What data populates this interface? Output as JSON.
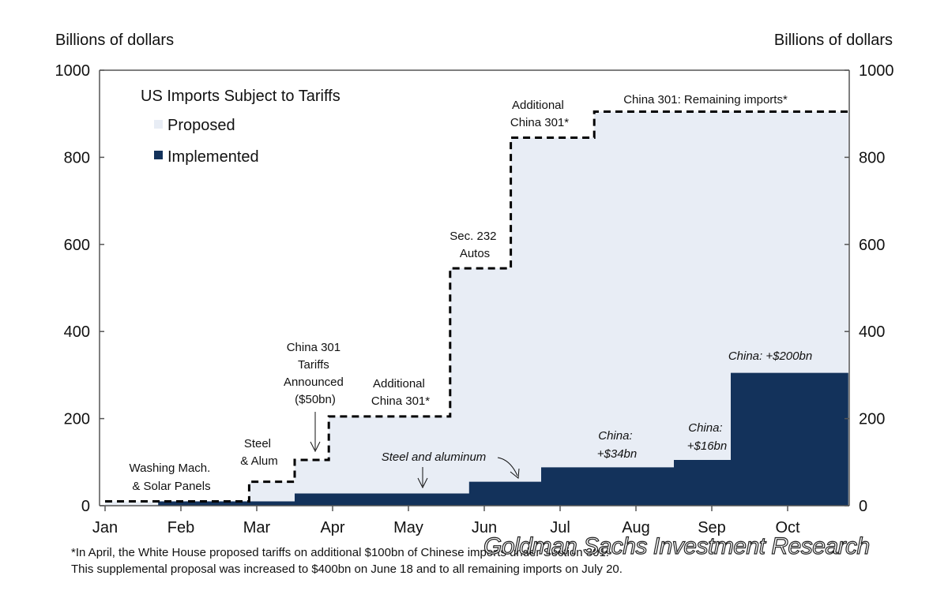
{
  "chart_data": {
    "type": "area",
    "title": "US Imports Subject to Tariffs",
    "ylabel_left": "Billions of dollars",
    "ylabel_right": "Billions of dollars",
    "ylim": [
      0,
      1000
    ],
    "yticks": [
      0,
      200,
      400,
      600,
      800,
      1000
    ],
    "x_months": [
      "Jan",
      "Feb",
      "Mar",
      "Apr",
      "May",
      "Jun",
      "Jul",
      "Aug",
      "Sep",
      "Oct"
    ],
    "x_range": [
      0,
      9.8
    ],
    "legend": [
      {
        "name": "Proposed",
        "color": "#e8edf5"
      },
      {
        "name": "Implemented",
        "color": "#13325b"
      }
    ],
    "series": [
      {
        "name": "Proposed",
        "steps": [
          {
            "x": 0.0,
            "y": 10
          },
          {
            "x": 1.8,
            "y": 10
          },
          {
            "x": 1.9,
            "y": 55
          },
          {
            "x": 2.5,
            "y": 105
          },
          {
            "x": 2.95,
            "y": 205
          },
          {
            "x": 4.55,
            "y": 545
          },
          {
            "x": 5.35,
            "y": 845
          },
          {
            "x": 6.45,
            "y": 905
          }
        ]
      },
      {
        "name": "Implemented",
        "steps": [
          {
            "x": 0.0,
            "y": 0
          },
          {
            "x": 0.7,
            "y": 10
          },
          {
            "x": 2.5,
            "y": 28
          },
          {
            "x": 4.8,
            "y": 55
          },
          {
            "x": 5.75,
            "y": 88
          },
          {
            "x": 7.5,
            "y": 105
          },
          {
            "x": 8.25,
            "y": 305
          }
        ]
      }
    ],
    "annotations": [
      {
        "lines": [
          "Washing Mach.",
          "& Solar Panels"
        ],
        "italic": false
      },
      {
        "lines": [
          "Steel",
          "& Alum"
        ],
        "italic": false
      },
      {
        "lines": [
          "China 301",
          "Tariffs",
          "Announced",
          "($50bn)"
        ],
        "italic": false
      },
      {
        "lines": [
          "Additional",
          "China 301*"
        ],
        "italic": false
      },
      {
        "lines": [
          "Sec. 232",
          "Autos"
        ],
        "italic": false
      },
      {
        "lines": [
          "Additional",
          "China 301*"
        ],
        "italic": false
      },
      {
        "lines": [
          "China 301: Remaining imports*"
        ],
        "italic": false
      },
      {
        "lines": [
          "Steel and aluminum"
        ],
        "italic": true
      },
      {
        "lines": [
          "China:",
          "+$34bn"
        ],
        "italic": true
      },
      {
        "lines": [
          "China:",
          "+$16bn"
        ],
        "italic": true
      },
      {
        "lines": [
          "China: +$200bn"
        ],
        "italic": true
      }
    ]
  },
  "footnote": {
    "line1": "*In  April, the White House proposed tariffs on additional $100bn of Chinese imports under Section 301.",
    "line2": "This supplemental proposal was increased to $400bn on June 18 and to all remaining imports on July 20."
  },
  "watermark": "Goldman Sachs Investment Research"
}
